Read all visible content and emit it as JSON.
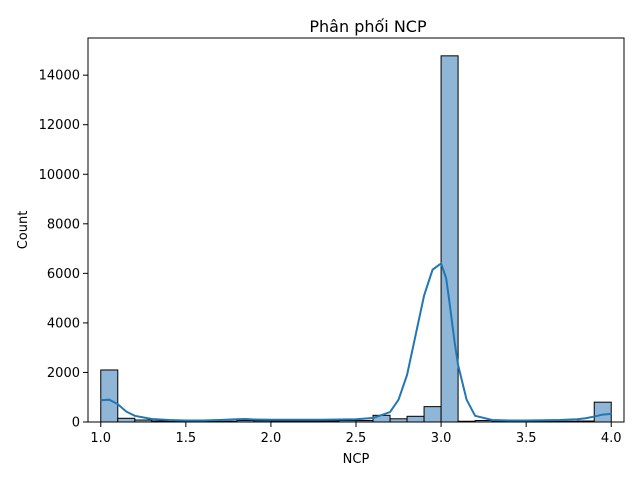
{
  "chart_data": {
    "type": "bar",
    "title": "Phân phối NCP",
    "xlabel": "NCP",
    "ylabel": "Count",
    "xlim": [
      0.925,
      4.075
    ],
    "ylim": [
      0,
      15500
    ],
    "x_ticks": [
      1.0,
      1.5,
      2.0,
      2.5,
      3.0,
      3.5,
      4.0
    ],
    "x_tick_labels": [
      "1.0",
      "1.5",
      "2.0",
      "2.5",
      "3.0",
      "3.5",
      "4.0"
    ],
    "y_ticks": [
      0,
      2000,
      4000,
      6000,
      8000,
      10000,
      12000,
      14000
    ],
    "y_tick_labels": [
      "0",
      "2000",
      "4000",
      "6000",
      "8000",
      "10000",
      "12000",
      "14000"
    ],
    "grid": false,
    "bin_width": 0.1,
    "bins_start": [
      1.0,
      1.1,
      1.2,
      1.3,
      1.4,
      1.5,
      1.6,
      1.7,
      1.8,
      1.9,
      2.0,
      2.1,
      2.2,
      2.3,
      2.4,
      2.5,
      2.6,
      2.7,
      2.8,
      2.9,
      3.0,
      3.1,
      3.2,
      3.3,
      3.4,
      3.5,
      3.6,
      3.7,
      3.8,
      3.9
    ],
    "values": [
      2100,
      150,
      80,
      40,
      30,
      30,
      30,
      30,
      60,
      50,
      40,
      40,
      40,
      40,
      60,
      60,
      270,
      130,
      230,
      620,
      14780,
      30,
      60,
      40,
      40,
      40,
      40,
      30,
      40,
      800
    ],
    "kde": {
      "x": [
        1.0,
        1.05,
        1.1,
        1.15,
        1.2,
        1.3,
        1.4,
        1.5,
        1.6,
        1.7,
        1.8,
        1.85,
        1.9,
        2.0,
        2.1,
        2.2,
        2.3,
        2.4,
        2.5,
        2.6,
        2.7,
        2.75,
        2.8,
        2.85,
        2.9,
        2.95,
        3.0,
        3.03,
        3.05,
        3.08,
        3.1,
        3.15,
        3.2,
        3.3,
        3.4,
        3.5,
        3.6,
        3.7,
        3.8,
        3.85,
        3.9,
        3.95,
        4.0
      ],
      "y": [
        880,
        900,
        720,
        420,
        250,
        120,
        80,
        60,
        60,
        80,
        110,
        120,
        100,
        90,
        90,
        90,
        90,
        100,
        110,
        160,
        400,
        900,
        1900,
        3500,
        5100,
        6150,
        6400,
        5800,
        4800,
        3200,
        2300,
        900,
        250,
        80,
        60,
        60,
        70,
        80,
        110,
        150,
        220,
        300,
        330
      ]
    },
    "colors": {
      "bar_fill": "#8fb6d6",
      "bar_edge": "#000000",
      "kde_line": "#1f77b4"
    }
  }
}
